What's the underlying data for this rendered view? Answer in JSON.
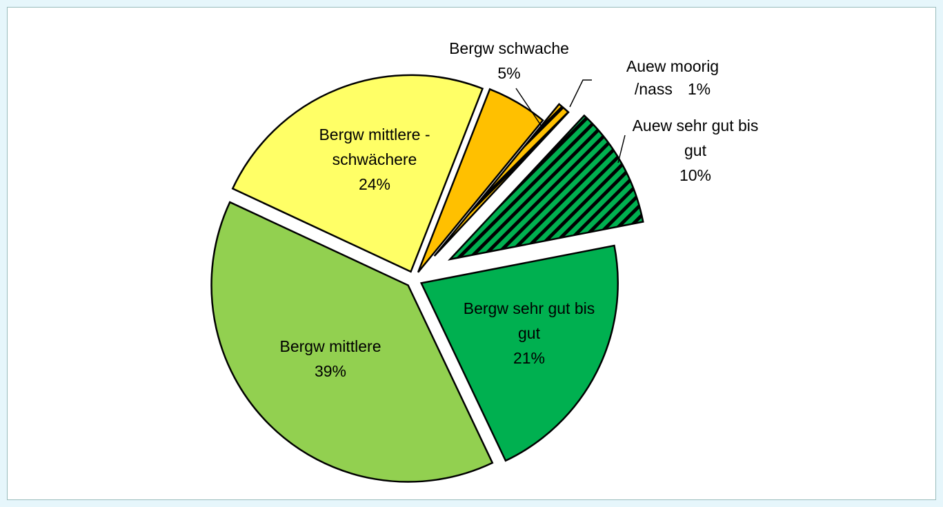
{
  "chart_data": {
    "type": "pie",
    "categories": [
      "Auew sehr gut bis gut",
      "Bergw sehr gut bis gut",
      "Bergw mittlere",
      "Bergw mittlere - schwächere",
      "Bergw schwache",
      "Auew moorig /nass"
    ],
    "values": [
      10,
      21,
      39,
      24,
      5,
      1
    ],
    "value_labels": [
      "10%",
      "21%",
      "39%",
      "24%",
      "5%",
      "1%"
    ],
    "colors": [
      "#00b050",
      "#00b050",
      "#92d050",
      "#ffff66",
      "#ffc000",
      "#ffc000"
    ],
    "hatch": [
      true,
      false,
      false,
      false,
      false,
      true
    ]
  }
}
